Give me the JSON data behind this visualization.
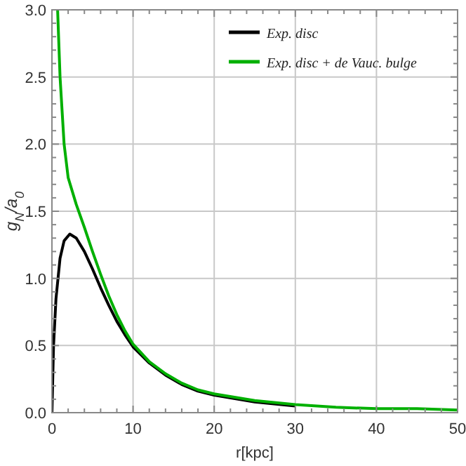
{
  "chart_data": {
    "type": "line",
    "xlabel": "r[kpc]",
    "ylabel": "g$_{N}$/a$_{0}$",
    "xlim": [
      0,
      50
    ],
    "xticks": [
      0,
      10,
      20,
      30,
      40,
      50
    ],
    "ylim": [
      0,
      3
    ],
    "yticks": [
      {
        "value": 0,
        "label": "0.0"
      },
      {
        "value": 0.5,
        "label": "0.5"
      },
      {
        "value": 1,
        "label": "1.0"
      },
      {
        "value": 1.5,
        "label": "1.5"
      },
      {
        "value": 2,
        "label": "2.0"
      },
      {
        "value": 2.5,
        "label": "2.5"
      },
      {
        "value": 3,
        "label": "3.0"
      }
    ],
    "grid": true,
    "legend": "top right",
    "marker": "none",
    "line_style": "solid",
    "series": [
      {
        "name": "Exp. disc",
        "color": "#000000",
        "x": [
          0,
          0.2,
          0.5,
          1,
          1.5,
          2.2,
          3,
          4,
          5,
          6,
          7,
          8,
          9,
          10,
          12,
          14,
          16,
          18,
          20,
          25,
          30
        ],
        "values": [
          0,
          0.5,
          0.85,
          1.15,
          1.28,
          1.33,
          1.3,
          1.2,
          1.07,
          0.93,
          0.8,
          0.68,
          0.58,
          0.49,
          0.37,
          0.28,
          0.21,
          0.16,
          0.13,
          0.08,
          0.05
        ]
      },
      {
        "name": "Exp. disc + de Vauc. bulge",
        "color": "#00b000",
        "x": [
          0.7,
          1,
          1.5,
          2,
          3,
          4,
          5,
          6,
          7,
          8,
          9,
          10,
          12,
          14,
          16,
          18,
          20,
          25,
          30,
          35,
          40,
          45,
          50
        ],
        "values": [
          3.0,
          2.5,
          2.0,
          1.75,
          1.55,
          1.38,
          1.2,
          1.03,
          0.87,
          0.73,
          0.61,
          0.51,
          0.38,
          0.29,
          0.22,
          0.17,
          0.14,
          0.09,
          0.06,
          0.04,
          0.03,
          0.03,
          0.02
        ]
      }
    ]
  }
}
